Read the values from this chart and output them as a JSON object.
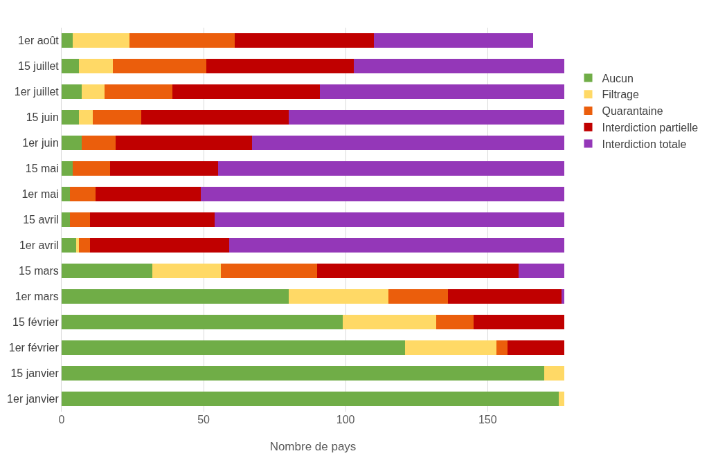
{
  "chart_data": {
    "type": "bar",
    "orientation": "horizontal",
    "stacked": true,
    "xlabel": "Nombre de pays",
    "categories": [
      "1er août",
      "15 juillet",
      "1er juillet",
      "15 juin",
      "1er juin",
      "15 mai",
      "1er mai",
      "15 avril",
      "1er avril",
      "15 mars",
      "1er mars",
      "15 février",
      "1er février",
      "15 janvier",
      "1er janvier"
    ],
    "series": [
      {
        "name": "Aucun",
        "color": "#70ad47",
        "values": [
          4,
          6,
          7,
          6,
          7,
          4,
          3,
          3,
          5,
          32,
          80,
          99,
          121,
          170,
          175
        ]
      },
      {
        "name": "Filtrage",
        "color": "#ffd966",
        "values": [
          20,
          12,
          8,
          5,
          0,
          0,
          0,
          0,
          1,
          24,
          35,
          33,
          32,
          7,
          2
        ]
      },
      {
        "name": "Quarantaine",
        "color": "#eb5e0c",
        "values": [
          37,
          33,
          24,
          17,
          12,
          13,
          9,
          7,
          4,
          34,
          21,
          13,
          4,
          0,
          0
        ]
      },
      {
        "name": "Interdiction partielle",
        "color": "#c00000",
        "values": [
          49,
          52,
          52,
          52,
          48,
          38,
          37,
          44,
          49,
          71,
          40,
          32,
          20,
          0,
          0
        ]
      },
      {
        "name": "Interdiction totale",
        "color": "#9437b8",
        "values": [
          56,
          74,
          86,
          97,
          110,
          122,
          128,
          123,
          118,
          16,
          1,
          0,
          0,
          0,
          0
        ]
      }
    ],
    "xlim": [
      0,
      177
    ],
    "xticks": [
      0,
      50,
      100,
      150
    ],
    "grid": "x",
    "legend": "right"
  }
}
